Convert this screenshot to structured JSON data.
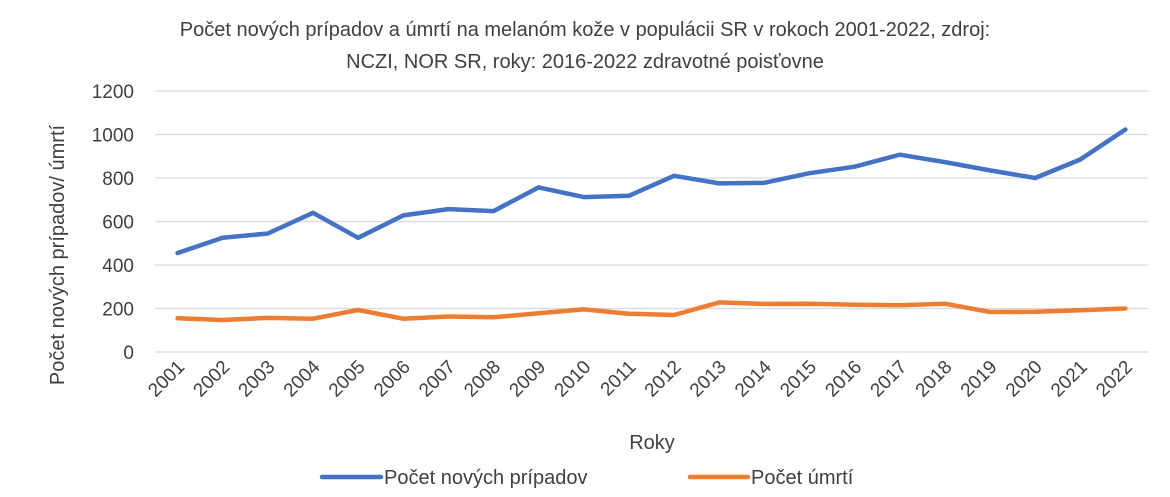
{
  "chart_data": {
    "type": "line",
    "title_line1": "Počet nových prípadov a úmrtí na melanóm kože v populácii SR v rokoch 2001-2022, zdroj:",
    "title_line2": "NCZI, NOR SR, roky: 2016-2022 zdravotné poisťovne",
    "xlabel": "Roky",
    "ylabel": "Počet nových prípadov/ úmrtí",
    "ylim": [
      0,
      1200
    ],
    "yticks": [
      "0",
      "200",
      "400",
      "600",
      "800",
      "1000",
      "1200"
    ],
    "categories": [
      "2001",
      "2002",
      "2003",
      "2004",
      "2005",
      "2006",
      "2007",
      "2008",
      "2009",
      "2010",
      "2011",
      "2012",
      "2013",
      "2014",
      "2015",
      "2016",
      "2017",
      "2018",
      "2019",
      "2020",
      "2021",
      "2022"
    ],
    "series": [
      {
        "name": "Počet nových prípadov",
        "color": "#4472c4",
        "values": [
          455,
          525,
          545,
          640,
          525,
          628,
          657,
          648,
          757,
          712,
          718,
          810,
          775,
          778,
          822,
          852,
          907,
          873,
          835,
          800,
          885,
          1023
        ]
      },
      {
        "name": "Počet úmrtí",
        "color": "#ed7d31",
        "values": [
          155,
          147,
          157,
          153,
          193,
          153,
          163,
          160,
          178,
          196,
          176,
          170,
          228,
          221,
          222,
          217,
          215,
          222,
          184,
          185,
          192,
          200
        ]
      }
    ],
    "grid": true,
    "legend_position": "bottom"
  }
}
